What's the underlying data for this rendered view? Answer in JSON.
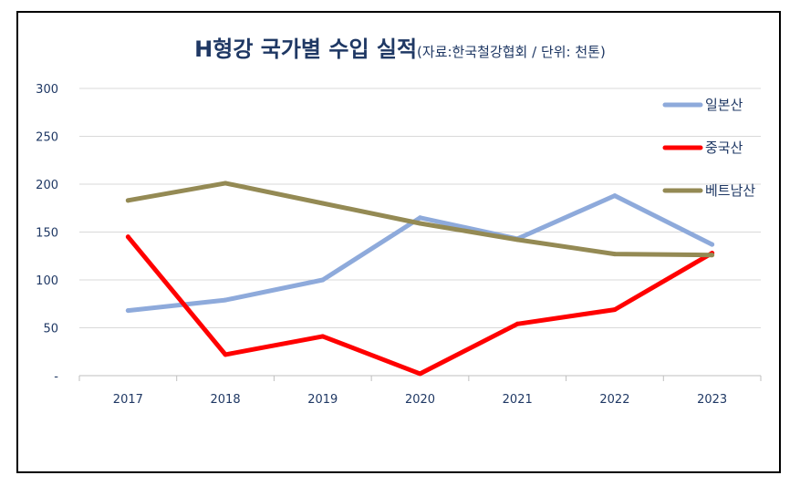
{
  "chart_data": {
    "type": "line",
    "title": "H형강 국가별 수입 실적",
    "subtitle": "(자료:한국철강협회 / 단위: 천톤)",
    "categories": [
      "2017",
      "2018",
      "2019",
      "2020",
      "2021",
      "2022",
      "2023"
    ],
    "y_tick_labels": [
      "-",
      "50",
      "100",
      "150",
      "200",
      "250",
      "300"
    ],
    "ylim": [
      0,
      300
    ],
    "grid": true,
    "legend_position": "right",
    "series": [
      {
        "name": "일본산",
        "color": "#8eaadb",
        "values": [
          68,
          79,
          100,
          165,
          143,
          188,
          137
        ]
      },
      {
        "name": "중국산",
        "color": "#ff0000",
        "values": [
          145,
          22,
          41,
          2,
          54,
          69,
          128
        ]
      },
      {
        "name": "베트남산",
        "color": "#948a54",
        "values": [
          183,
          201,
          180,
          159,
          142,
          127,
          126
        ]
      }
    ]
  }
}
